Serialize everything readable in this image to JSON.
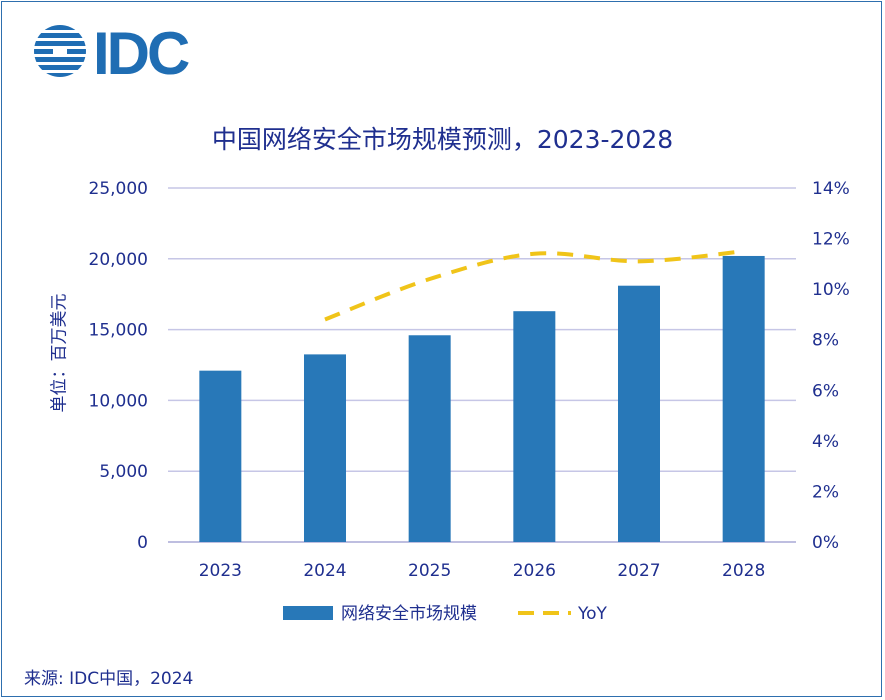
{
  "logo": {
    "text": "IDC",
    "color": "#1f6db3"
  },
  "chart_data": {
    "type": "bar",
    "title": "中国网络安全市场规模预测，2023-2028",
    "ylabel": "单位：百万美元",
    "categories": [
      "2023",
      "2024",
      "2025",
      "2026",
      "2027",
      "2028"
    ],
    "series": [
      {
        "name": "网络安全市场规模",
        "type": "bar",
        "axis": "left",
        "color": "#2878b8",
        "values": [
          12100,
          13250,
          14600,
          16300,
          18100,
          20200
        ]
      },
      {
        "name": "YoY",
        "type": "line",
        "style": "dashed",
        "axis": "right",
        "color": "#f0c419",
        "values": [
          null,
          8.8,
          10.4,
          11.4,
          11.1,
          11.5
        ]
      }
    ],
    "ylim": [
      0,
      25000
    ],
    "y_ticks": [
      "0",
      "5,000",
      "10,000",
      "15,000",
      "20,000",
      "25,000"
    ],
    "y2lim": [
      0,
      14
    ],
    "y2_ticks": [
      "0%",
      "2%",
      "4%",
      "6%",
      "8%",
      "10%",
      "12%",
      "14%"
    ],
    "grid": true,
    "legend_position": "bottom"
  },
  "source": "来源: IDC中国，2024",
  "colors": {
    "text": "#1f2f8f",
    "grid": "#c6c6e6",
    "axis": "#a9a9d6",
    "border": "#2e6fae"
  }
}
